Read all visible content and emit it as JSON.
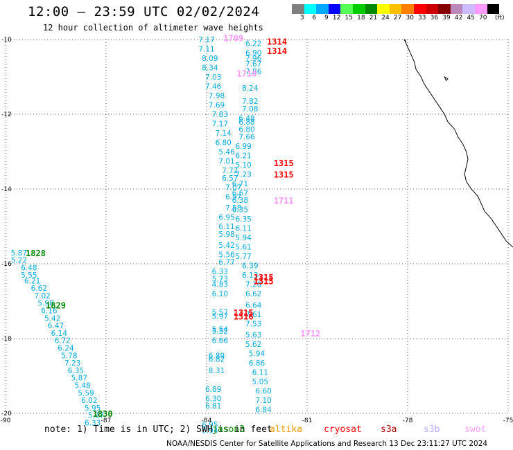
{
  "title": "12:00 – 23:59 UTC 02/02/2024",
  "subtitle": "12 hour collection of altimeter wave heights",
  "legend": {
    "colors": [
      "#7f7f7f",
      "#00ffff",
      "#00aaff",
      "#0000ff",
      "#55ff55",
      "#00cc00",
      "#008800",
      "#ffff00",
      "#ffc000",
      "#ff8000",
      "#ff0000",
      "#cc0000",
      "#880000",
      "#bb88bb",
      "#ccbbff",
      "#ff99ff",
      "#000000"
    ],
    "labels": [
      "3",
      "6",
      "9",
      "12",
      "15",
      "18",
      "21",
      "24",
      "27",
      "30",
      "33",
      "36",
      "39",
      "42",
      "45",
      "70"
    ],
    "unit": "(ft)"
  },
  "note": "note: 1) Time is in UTC; 2) SWH is in feet",
  "missions": [
    {
      "name": "jason3",
      "color": "#008800"
    },
    {
      "name": "altika",
      "color": "#ff9900"
    },
    {
      "name": "cryosat",
      "color": "#ff0000"
    },
    {
      "name": "s3a",
      "color": "#aa0000"
    },
    {
      "name": "s3b",
      "color": "#bbaaff"
    },
    {
      "name": "swot",
      "color": "#ff99ff"
    }
  ],
  "footer": "NOAA/NESDIS Center for Satellite Applications and Research   13 Dec 23:11:27 UTC 2024",
  "chart_data": {
    "type": "scatter",
    "xlim": [
      -90,
      -75
    ],
    "ylim": [
      -20,
      -10
    ],
    "xticks": [
      -90,
      -87,
      -84,
      -81,
      -78,
      -75
    ],
    "yticks": [
      -10,
      -12,
      -14,
      -16,
      -18,
      -20
    ],
    "xtick_labels": [
      "-90",
      "-87",
      "-84",
      "-81",
      "-78",
      "-75"
    ],
    "ytick_labels": [
      "-10",
      "-12",
      "-14",
      "-16",
      "-18",
      "-20"
    ],
    "grid": true,
    "value_color": "#00aadd",
    "tracks": [
      {
        "name": "track-left-1",
        "points": [
          {
            "lon": -89.6,
            "lat": -15.7,
            "v": "5.87"
          },
          {
            "lon": -89.6,
            "lat": -15.9,
            "v": "5.22"
          },
          {
            "lon": -89.3,
            "lat": -16.1,
            "v": "6.48"
          },
          {
            "lon": -89.3,
            "lat": -16.3,
            "v": "5.55"
          },
          {
            "lon": -89.2,
            "lat": -16.45,
            "v": "6.21"
          },
          {
            "lon": -89.0,
            "lat": -16.65,
            "v": "6.62"
          },
          {
            "lon": -88.9,
            "lat": -16.85,
            "v": "7.02"
          },
          {
            "lon": -88.8,
            "lat": -17.05,
            "v": "5.98"
          },
          {
            "lon": -88.7,
            "lat": -17.25,
            "v": "6.16"
          },
          {
            "lon": -88.6,
            "lat": -17.45,
            "v": "5.42"
          },
          {
            "lon": -88.5,
            "lat": -17.65,
            "v": "6.47"
          },
          {
            "lon": -88.4,
            "lat": -17.85,
            "v": "6.14"
          },
          {
            "lon": -88.3,
            "lat": -18.05,
            "v": "6.72"
          },
          {
            "lon": -88.2,
            "lat": -18.25,
            "v": "6.24"
          },
          {
            "lon": -88.1,
            "lat": -18.45,
            "v": "5.78"
          },
          {
            "lon": -88.0,
            "lat": -18.65,
            "v": "7.23"
          },
          {
            "lon": -87.9,
            "lat": -18.85,
            "v": "6.35"
          },
          {
            "lon": -87.8,
            "lat": -19.05,
            "v": "5.87"
          },
          {
            "lon": -87.7,
            "lat": -19.25,
            "v": "5.48"
          },
          {
            "lon": -87.6,
            "lat": -19.45,
            "v": "5.59"
          },
          {
            "lon": -87.5,
            "lat": -19.65,
            "v": "6.02"
          },
          {
            "lon": -87.4,
            "lat": -19.85,
            "v": "5.95"
          },
          {
            "lon": -87.3,
            "lat": -20.05,
            "v": "5.37"
          },
          {
            "lon": -87.4,
            "lat": -20.25,
            "v": "6.33"
          }
        ]
      },
      {
        "name": "track-center-1",
        "points": [
          {
            "lon": -84.0,
            "lat": -10.0,
            "v": "7.17"
          },
          {
            "lon": -84.0,
            "lat": -10.25,
            "v": "7.11"
          },
          {
            "lon": -83.9,
            "lat": -10.5,
            "v": "8.09"
          },
          {
            "lon": -83.9,
            "lat": -10.75,
            "v": "8.34"
          },
          {
            "lon": -83.8,
            "lat": -11.0,
            "v": "7.03"
          },
          {
            "lon": -83.8,
            "lat": -11.25,
            "v": "7.46"
          },
          {
            "lon": -83.7,
            "lat": -11.5,
            "v": "7.98"
          },
          {
            "lon": -83.7,
            "lat": -11.75,
            "v": "7.69"
          },
          {
            "lon": -83.6,
            "lat": -12.0,
            "v": "7.83"
          },
          {
            "lon": -83.6,
            "lat": -12.25,
            "v": "7.17"
          },
          {
            "lon": -83.5,
            "lat": -12.5,
            "v": "7.14"
          },
          {
            "lon": -83.5,
            "lat": -12.75,
            "v": "6.80"
          },
          {
            "lon": -83.4,
            "lat": -13.0,
            "v": "5.46"
          },
          {
            "lon": -83.4,
            "lat": -13.25,
            "v": "7.01"
          },
          {
            "lon": -83.3,
            "lat": -13.5,
            "v": "7.72"
          },
          {
            "lon": -83.3,
            "lat": -13.7,
            "v": "6.57"
          },
          {
            "lon": -83.2,
            "lat": -13.95,
            "v": "7.07"
          },
          {
            "lon": -83.2,
            "lat": -14.2,
            "v": "6.97"
          },
          {
            "lon": -83.2,
            "lat": -14.5,
            "v": "7.58"
          },
          {
            "lon": -83.4,
            "lat": -14.75,
            "v": "6.95"
          },
          {
            "lon": -83.4,
            "lat": -15.0,
            "v": "6.11"
          },
          {
            "lon": -83.4,
            "lat": -15.2,
            "v": "5.98"
          },
          {
            "lon": -83.4,
            "lat": -15.5,
            "v": "5.42"
          },
          {
            "lon": -83.4,
            "lat": -15.75,
            "v": "5.56"
          },
          {
            "lon": -83.4,
            "lat": -15.95,
            "v": "6.77"
          },
          {
            "lon": -83.6,
            "lat": -16.2,
            "v": "6.33"
          },
          {
            "lon": -83.6,
            "lat": -16.4,
            "v": "5.73"
          },
          {
            "lon": -83.6,
            "lat": -16.55,
            "v": "4.83"
          },
          {
            "lon": -83.6,
            "lat": -16.8,
            "v": "6.10"
          },
          {
            "lon": -83.6,
            "lat": -17.3,
            "v": "5.57"
          },
          {
            "lon": -83.6,
            "lat": -17.4,
            "v": "5.97"
          },
          {
            "lon": -83.6,
            "lat": -17.75,
            "v": "5.54"
          },
          {
            "lon": -83.6,
            "lat": -17.8,
            "v": "5.52"
          },
          {
            "lon": -83.6,
            "lat": -18.05,
            "v": "6.66"
          },
          {
            "lon": -83.7,
            "lat": -18.45,
            "v": "6.89"
          },
          {
            "lon": -83.7,
            "lat": -18.55,
            "v": "6.82"
          },
          {
            "lon": -83.7,
            "lat": -18.85,
            "v": "8.31"
          },
          {
            "lon": -83.8,
            "lat": -19.35,
            "v": "6.89"
          },
          {
            "lon": -83.8,
            "lat": -19.6,
            "v": "6.30"
          },
          {
            "lon": -83.8,
            "lat": -19.8,
            "v": "6.81"
          },
          {
            "lon": -83.9,
            "lat": -20.3,
            "v": "6.95"
          },
          {
            "lon": -83.9,
            "lat": -20.45,
            "v": "5.94"
          }
        ]
      },
      {
        "name": "track-center-2",
        "points": [
          {
            "lon": -82.6,
            "lat": -10.1,
            "v": "6.22"
          },
          {
            "lon": -82.6,
            "lat": -10.35,
            "v": "6.90"
          },
          {
            "lon": -82.6,
            "lat": -10.5,
            "v": "7.96"
          },
          {
            "lon": -82.6,
            "lat": -10.65,
            "v": "7.67"
          },
          {
            "lon": -82.6,
            "lat": -10.85,
            "v": "7.86"
          },
          {
            "lon": -82.7,
            "lat": -11.3,
            "v": "8.24"
          },
          {
            "lon": -82.7,
            "lat": -11.65,
            "v": "7.82"
          },
          {
            "lon": -82.7,
            "lat": -11.85,
            "v": "7.08"
          },
          {
            "lon": -82.8,
            "lat": -12.1,
            "v": "6.48"
          },
          {
            "lon": -82.8,
            "lat": -12.2,
            "v": "6.88"
          },
          {
            "lon": -82.8,
            "lat": -12.4,
            "v": "6.80"
          },
          {
            "lon": -82.8,
            "lat": -12.6,
            "v": "7.66"
          },
          {
            "lon": -82.9,
            "lat": -12.85,
            "v": "6.99"
          },
          {
            "lon": -82.9,
            "lat": -13.1,
            "v": "6.21"
          },
          {
            "lon": -82.9,
            "lat": -13.35,
            "v": "5.10"
          },
          {
            "lon": -82.9,
            "lat": -13.6,
            "v": "7.23"
          },
          {
            "lon": -83.0,
            "lat": -13.85,
            "v": "6.71"
          },
          {
            "lon": -83.0,
            "lat": -14.1,
            "v": "6.67"
          },
          {
            "lon": -83.0,
            "lat": -14.3,
            "v": "6.38"
          },
          {
            "lon": -83.0,
            "lat": -14.55,
            "v": "6.35"
          },
          {
            "lon": -82.9,
            "lat": -14.8,
            "v": "6.35"
          },
          {
            "lon": -82.9,
            "lat": -15.05,
            "v": "6.11"
          },
          {
            "lon": -82.9,
            "lat": -15.3,
            "v": "5.94"
          },
          {
            "lon": -82.9,
            "lat": -15.55,
            "v": "5.61"
          },
          {
            "lon": -82.9,
            "lat": -15.8,
            "v": "5.77"
          },
          {
            "lon": -82.7,
            "lat": -16.05,
            "v": "6.39"
          },
          {
            "lon": -82.7,
            "lat": -16.3,
            "v": "6.13"
          },
          {
            "lon": -82.6,
            "lat": -16.55,
            "v": "7.28"
          },
          {
            "lon": -82.6,
            "lat": -16.8,
            "v": "6.62"
          },
          {
            "lon": -82.6,
            "lat": -17.1,
            "v": "6.64"
          },
          {
            "lon": -82.6,
            "lat": -17.35,
            "v": "7.61"
          },
          {
            "lon": -82.6,
            "lat": -17.6,
            "v": "7.53"
          },
          {
            "lon": -82.6,
            "lat": -17.9,
            "v": "5.63"
          },
          {
            "lon": -82.6,
            "lat": -18.15,
            "v": "5.62"
          },
          {
            "lon": -82.5,
            "lat": -18.4,
            "v": "5.94"
          },
          {
            "lon": -82.5,
            "lat": -18.65,
            "v": "6.86"
          },
          {
            "lon": -82.4,
            "lat": -18.9,
            "v": "6.11"
          },
          {
            "lon": -82.4,
            "lat": -19.15,
            "v": "5.05"
          },
          {
            "lon": -82.3,
            "lat": -19.4,
            "v": "6.60"
          },
          {
            "lon": -82.3,
            "lat": -19.65,
            "v": "7.10"
          },
          {
            "lon": -82.3,
            "lat": -19.9,
            "v": "6.84"
          }
        ]
      }
    ],
    "time_labels": [
      {
        "lon": -83.2,
        "lat": -9.95,
        "t": "1709",
        "mission": "swot"
      },
      {
        "lon": -81.9,
        "lat": -10.05,
        "t": "1314",
        "mission": "cryosat"
      },
      {
        "lon": -81.9,
        "lat": -10.3,
        "t": "1314",
        "mission": "cryosat"
      },
      {
        "lon": -82.8,
        "lat": -10.9,
        "t": "1710",
        "mission": "swot"
      },
      {
        "lon": -81.7,
        "lat": -13.3,
        "t": "1315",
        "mission": "cryosat"
      },
      {
        "lon": -81.7,
        "lat": -13.6,
        "t": "1315",
        "mission": "cryosat"
      },
      {
        "lon": -81.7,
        "lat": -14.3,
        "t": "1711",
        "mission": "swot"
      },
      {
        "lon": -89.1,
        "lat": -15.7,
        "t": "1828",
        "mission": "jason3"
      },
      {
        "lon": -82.3,
        "lat": -16.35,
        "t": "1315",
        "mission": "cryosat"
      },
      {
        "lon": -82.3,
        "lat": -16.45,
        "t": "1315",
        "mission": "cryosat"
      },
      {
        "lon": -88.5,
        "lat": -17.1,
        "t": "1829",
        "mission": "jason3"
      },
      {
        "lon": -82.9,
        "lat": -17.3,
        "t": "1315",
        "mission": "cryosat"
      },
      {
        "lon": -82.9,
        "lat": -17.4,
        "t": "1316",
        "mission": "cryosat"
      },
      {
        "lon": -80.9,
        "lat": -17.85,
        "t": "1712",
        "mission": "swot"
      },
      {
        "lon": -87.1,
        "lat": -20.0,
        "t": "1830",
        "mission": "jason3"
      }
    ]
  }
}
